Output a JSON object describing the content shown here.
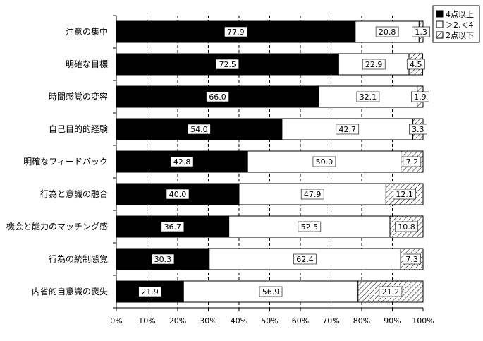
{
  "chart_data": {
    "type": "bar",
    "orientation": "horizontal",
    "stacked": true,
    "categories": [
      "注意の集中",
      "明確な目標",
      "時間感覚の変容",
      "自己目的的経験",
      "明確なフィードバック",
      "行為と意識の融合",
      "機会と能力のマッチング感",
      "行為の統制感覚",
      "内省的自意識の喪失"
    ],
    "series": [
      {
        "name": "4点以上",
        "fill": "black",
        "values": [
          77.9,
          72.5,
          66.0,
          54.0,
          42.8,
          40.0,
          36.7,
          30.3,
          21.9
        ],
        "labels": [
          "77.9",
          "72.5",
          "66.0",
          "54.0",
          "42.8",
          "40.0",
          "36.7",
          "30.3",
          "21.9"
        ]
      },
      {
        "name": "＞2,＜4",
        "fill": "white",
        "values": [
          20.8,
          22.9,
          32.1,
          42.7,
          50.0,
          47.9,
          52.5,
          62.4,
          56.9
        ],
        "labels": [
          "20.8",
          "22.9",
          "32.1",
          "42.7",
          "50.0",
          "47.9",
          "52.5",
          "62.4",
          "56.9"
        ]
      },
      {
        "name": "2点以下",
        "fill": "hatch",
        "values": [
          1.3,
          4.5,
          1.9,
          3.3,
          7.2,
          12.1,
          10.8,
          7.3,
          21.2
        ],
        "labels": [
          "1.3",
          "4.5",
          "1.9",
          "3.3",
          "7.2",
          "12.1",
          "10.8",
          "7.3",
          "21.2"
        ]
      }
    ],
    "x_ticks": [
      "0%",
      "10%",
      "20%",
      "30%",
      "40%",
      "50%",
      "60%",
      "70%",
      "80%",
      "90%",
      "100%"
    ],
    "xlim": [
      0,
      100
    ],
    "grid": "vertical dashed",
    "legend_position": "top-right"
  }
}
